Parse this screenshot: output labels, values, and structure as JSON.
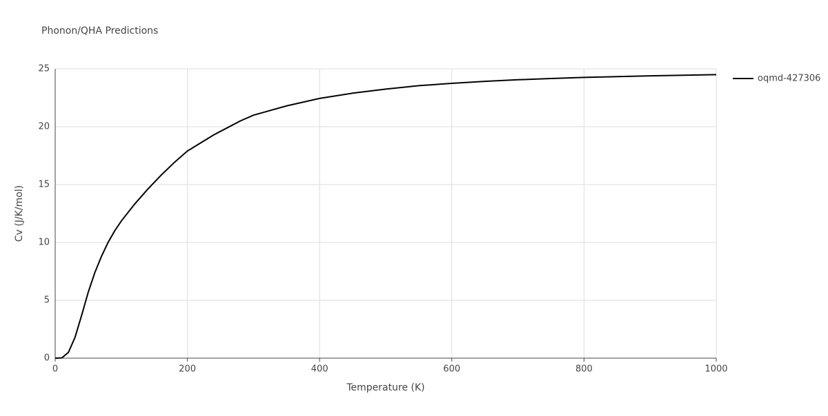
{
  "chart_data": {
    "type": "line",
    "title": "Phonon/QHA Predictions",
    "x_label": "Temperature (K)",
    "y_label": "Cv (J/K/mol)",
    "x": [
      0,
      10,
      20,
      30,
      40,
      50,
      60,
      70,
      80,
      90,
      100,
      120,
      140,
      160,
      180,
      200,
      220,
      240,
      260,
      280,
      300,
      350,
      400,
      450,
      500,
      550,
      600,
      650,
      700,
      750,
      800,
      850,
      900,
      950,
      1000
    ],
    "series": [
      {
        "name": "oqmd-427306",
        "color": "#000000",
        "values": [
          0,
          0.02,
          0.5,
          1.8,
          3.7,
          5.7,
          7.4,
          8.8,
          10.0,
          11.0,
          11.85,
          13.3,
          14.6,
          15.8,
          16.9,
          17.9,
          18.6,
          19.3,
          19.9,
          20.5,
          21.0,
          21.8,
          22.45,
          22.9,
          23.25,
          23.55,
          23.75,
          23.92,
          24.06,
          24.17,
          24.26,
          24.33,
          24.4,
          24.45,
          24.5
        ]
      }
    ],
    "xlim": [
      0,
      1000
    ],
    "xticks": [
      0,
      200,
      400,
      600,
      800,
      1000
    ],
    "ylim": [
      0,
      25
    ],
    "yticks": [
      0,
      5,
      10,
      15,
      20,
      25
    ],
    "grid": true,
    "legend": "right"
  }
}
